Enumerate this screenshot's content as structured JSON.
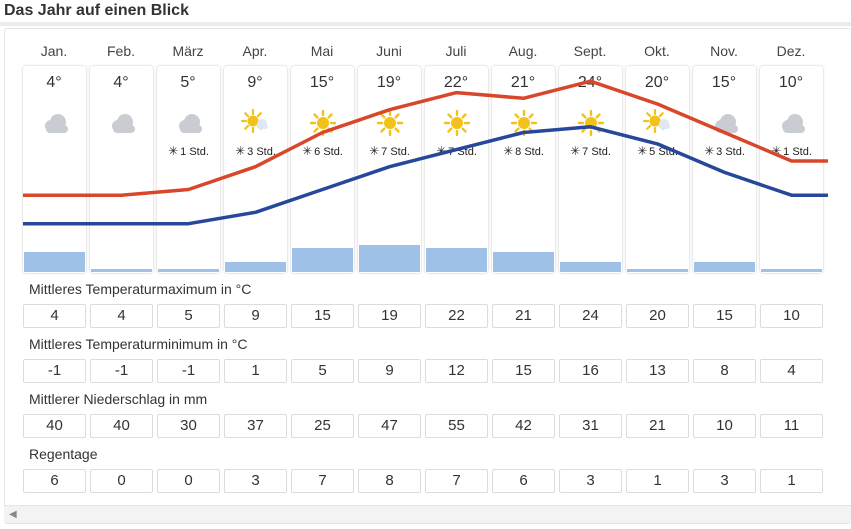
{
  "page_title": "Das Jahr auf einen Blick",
  "months": [
    "Jan.",
    "Feb.",
    "März",
    "Apr.",
    "Mai",
    "Juni",
    "Juli",
    "Aug.",
    "Sept.",
    "Okt.",
    "Nov.",
    "Dez."
  ],
  "temp_labels": [
    "4°",
    "4°",
    "5°",
    "9°",
    "15°",
    "19°",
    "22°",
    "21°",
    "24°",
    "20°",
    "15°",
    "10°"
  ],
  "weather_icons": [
    "cloud-icon",
    "cloud-icon",
    "cloud-icon",
    "sun-cloud-icon",
    "sun-icon",
    "sun-icon",
    "sun-icon",
    "sun-icon",
    "sun-icon",
    "sun-cloud-icon",
    "cloud-icon",
    "cloud-icon"
  ],
  "sun_hours": [
    "",
    "",
    "1 Std.",
    "3 Std.",
    "6 Std.",
    "7 Std.",
    "7 Std.",
    "8 Std.",
    "7 Std.",
    "5 Std.",
    "3 Std.",
    "1 Std."
  ],
  "colors": {
    "max_line": "#d9472b",
    "min_line": "#27479a",
    "rain_bar": "#9fc1e8",
    "sun": "#f2c21b",
    "cloud": "#c9ccd1"
  },
  "chart_data": {
    "type": "line",
    "categories": [
      "Jan.",
      "Feb.",
      "März",
      "Apr.",
      "Mai",
      "Juni",
      "Juli",
      "Aug.",
      "Sept.",
      "Okt.",
      "Nov.",
      "Dez."
    ],
    "series": [
      {
        "name": "Mittleres Temperaturmaximum in °C",
        "values": [
          4,
          4,
          5,
          9,
          15,
          19,
          22,
          21,
          24,
          20,
          15,
          10
        ]
      },
      {
        "name": "Mittleres Temperaturminimum in °C",
        "values": [
          -1,
          -1,
          -1,
          1,
          5,
          9,
          12,
          15,
          16,
          13,
          8,
          4
        ]
      },
      {
        "name": "Mittlerer Niederschlag in mm",
        "values": [
          40,
          40,
          30,
          37,
          25,
          47,
          55,
          42,
          31,
          21,
          10,
          11
        ]
      },
      {
        "name": "Regentage",
        "values": [
          6,
          0,
          0,
          3,
          7,
          8,
          7,
          6,
          3,
          1,
          3,
          1
        ]
      }
    ],
    "rows": [
      {
        "label": "Mittleres Temperaturmaximum in °C",
        "values": [
          "4",
          "4",
          "5",
          "9",
          "15",
          "19",
          "22",
          "21",
          "24",
          "20",
          "15",
          "10"
        ]
      },
      {
        "label": "Mittleres Temperaturminimum in °C",
        "values": [
          "-1",
          "-1",
          "-1",
          "1",
          "5",
          "9",
          "12",
          "15",
          "16",
          "13",
          "8",
          "4"
        ]
      },
      {
        "label": "Mittlerer Niederschlag in mm",
        "values": [
          "40",
          "40",
          "30",
          "37",
          "25",
          "47",
          "55",
          "42",
          "31",
          "21",
          "10",
          "11"
        ]
      },
      {
        "label": "Regentage",
        "values": [
          "6",
          "0",
          "0",
          "3",
          "7",
          "8",
          "7",
          "6",
          "3",
          "1",
          "3",
          "1"
        ]
      }
    ],
    "rain_bar_series": "Regentage",
    "grid": false
  }
}
